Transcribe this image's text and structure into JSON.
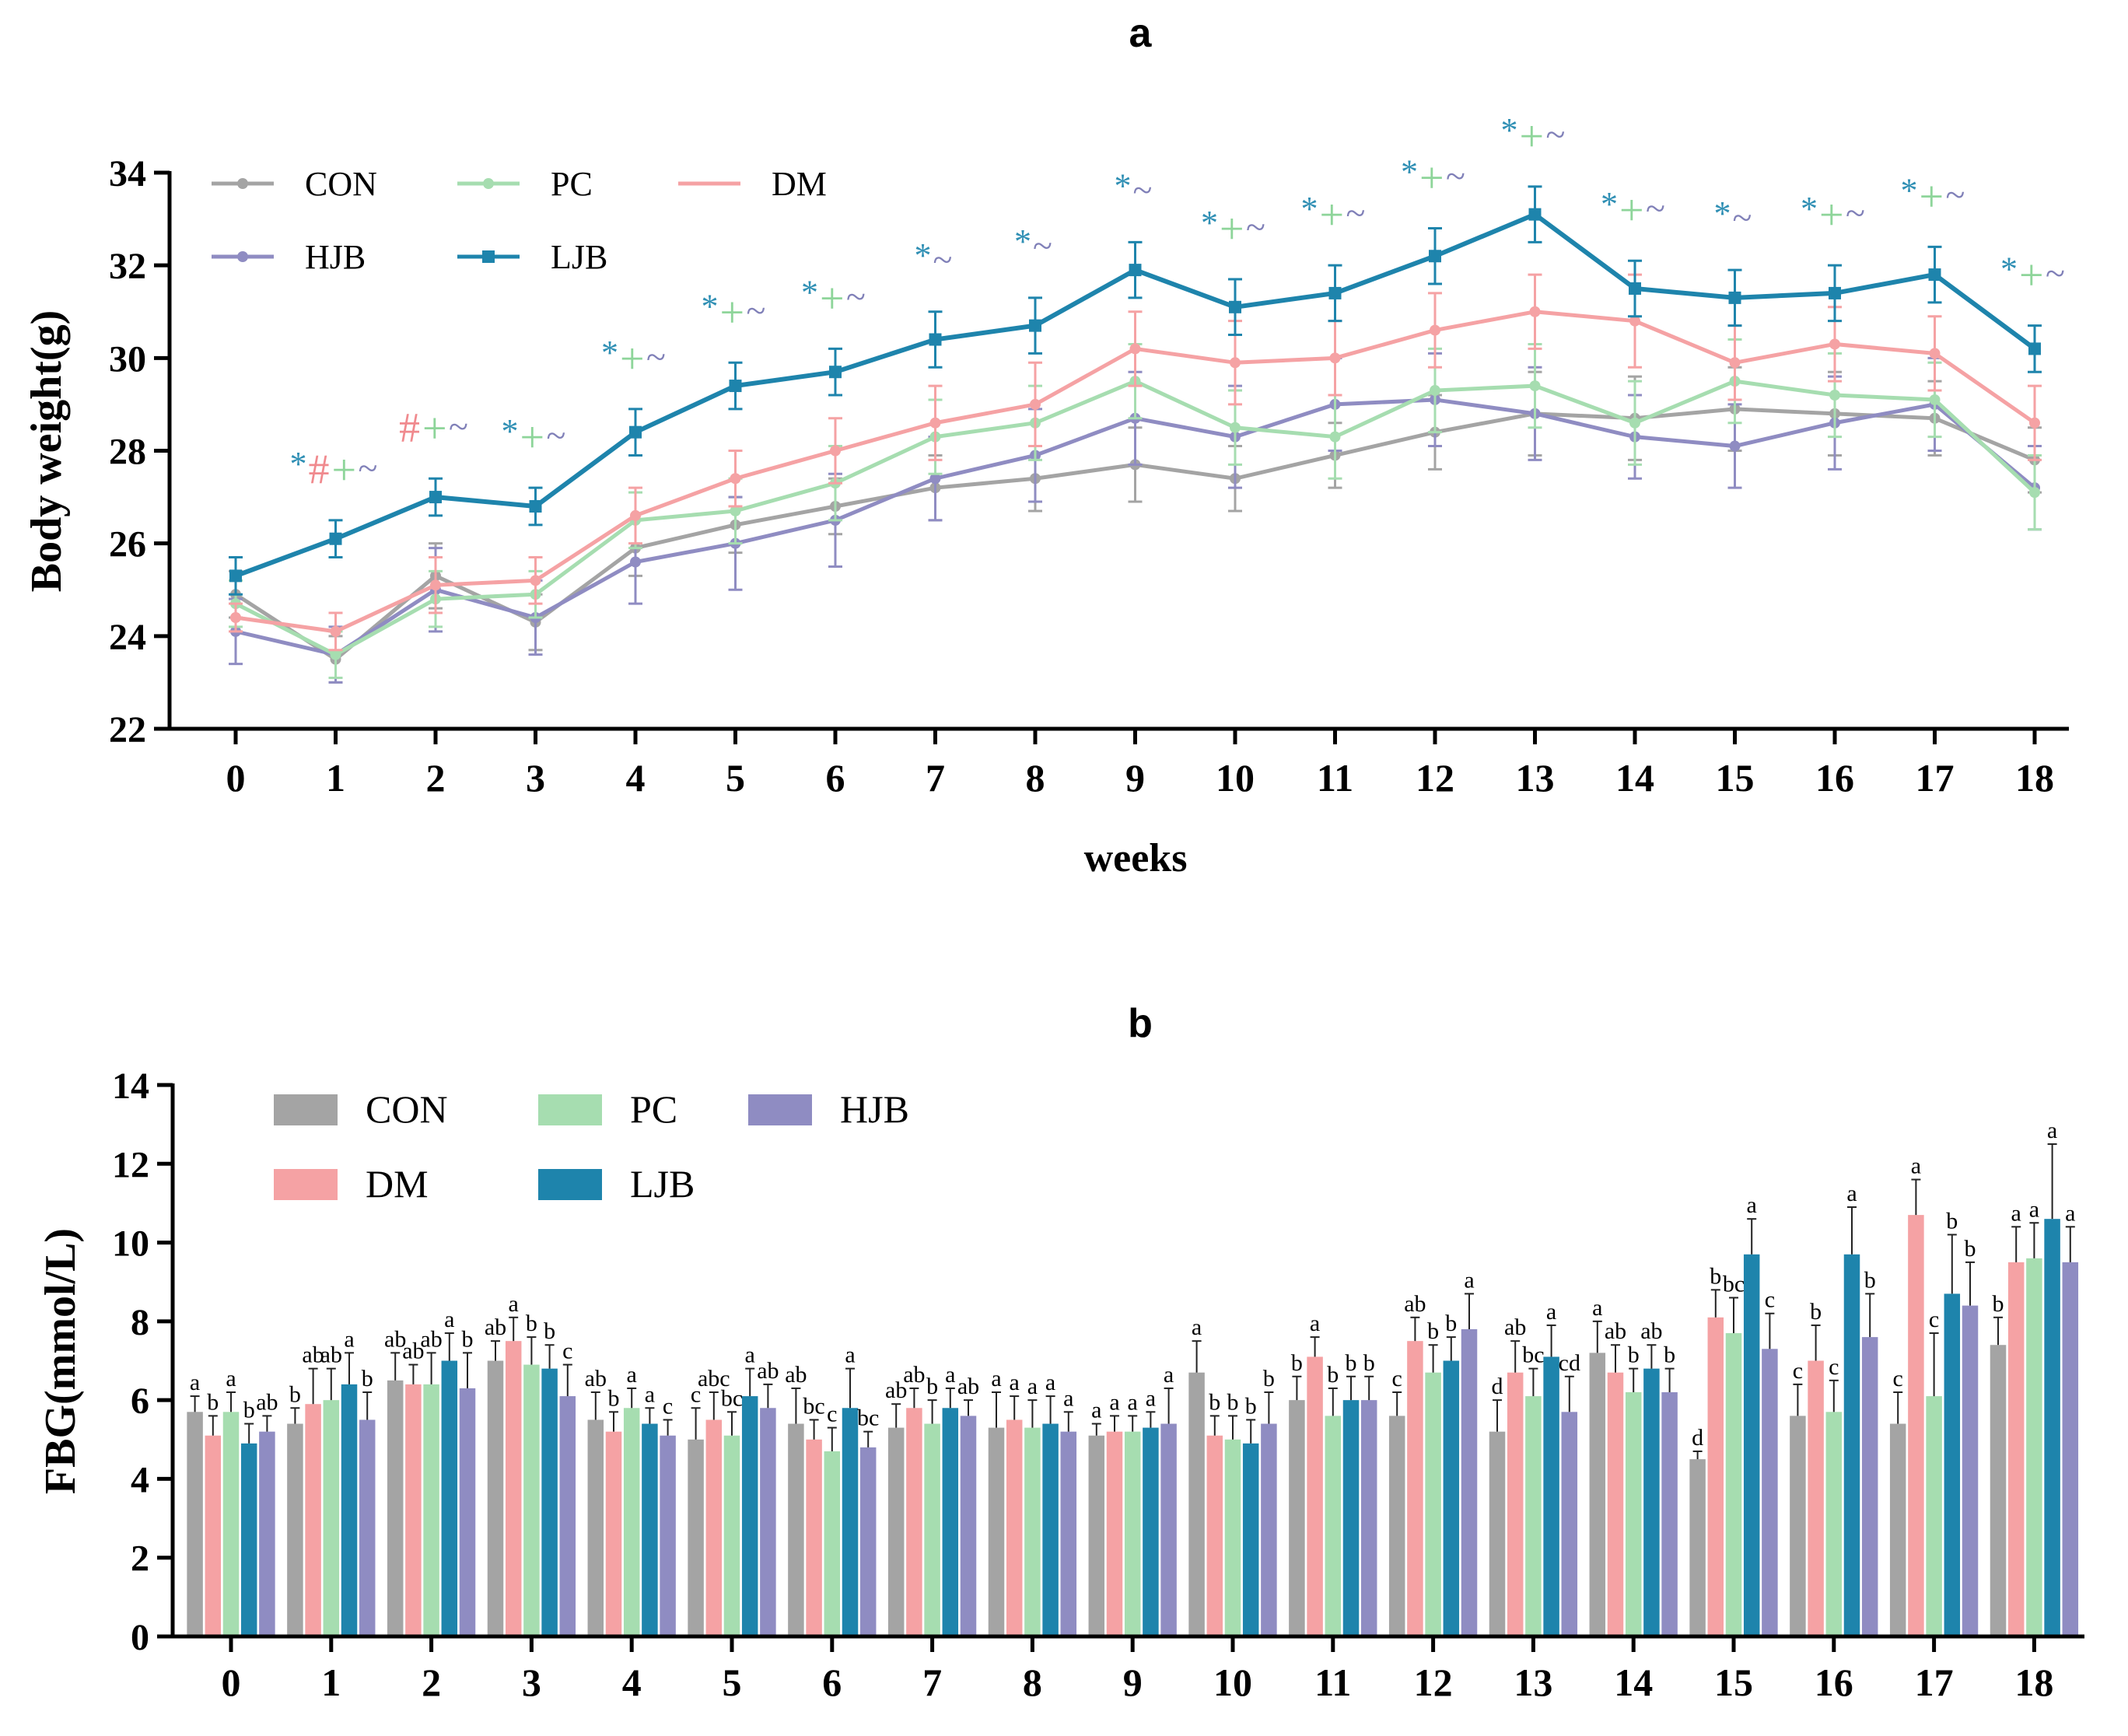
{
  "figure": {
    "panel_a_label": "a",
    "panel_b_label": "b"
  },
  "colors": {
    "CON": "#a4a4a4",
    "PC": "#a6ddb0",
    "DM": "#f5a2a4",
    "HJB": "#8f8cc2",
    "LJB": "#1e84ac",
    "star": "#2f8fb4",
    "plus": "#8ed59a",
    "hash": "#f08a8e",
    "tilde": "#8080b8"
  },
  "chart_data": [
    {
      "type": "line",
      "title": "a",
      "xlabel": "weeks",
      "ylabel": "Body weight(g)",
      "ylim": [
        22,
        34
      ],
      "yticks": [
        22,
        24,
        26,
        28,
        30,
        32,
        34
      ],
      "x": [
        0,
        1,
        2,
        3,
        4,
        5,
        6,
        7,
        8,
        9,
        10,
        11,
        12,
        13,
        14,
        15,
        16,
        17,
        18
      ],
      "legend_order": [
        "CON",
        "PC",
        "DM",
        "HJB",
        "LJB"
      ],
      "series": [
        {
          "name": "CON",
          "values": [
            24.9,
            23.5,
            25.3,
            24.3,
            25.9,
            26.4,
            26.8,
            27.2,
            27.4,
            27.7,
            27.4,
            27.9,
            28.4,
            28.8,
            28.7,
            28.9,
            28.8,
            28.7,
            27.8
          ],
          "err": [
            0.5,
            0.5,
            0.7,
            0.6,
            0.6,
            0.6,
            0.6,
            0.7,
            0.7,
            0.8,
            0.7,
            0.7,
            0.8,
            0.9,
            0.9,
            0.9,
            0.9,
            0.8,
            0.7
          ]
        },
        {
          "name": "PC",
          "values": [
            24.7,
            23.6,
            24.8,
            24.9,
            26.5,
            26.7,
            27.3,
            28.3,
            28.6,
            29.5,
            28.5,
            28.3,
            29.3,
            29.4,
            28.6,
            29.5,
            29.2,
            29.1,
            27.1
          ],
          "err": [
            0.5,
            0.5,
            0.6,
            0.5,
            0.6,
            0.7,
            0.8,
            0.8,
            0.8,
            0.8,
            0.8,
            0.9,
            0.9,
            0.9,
            0.9,
            0.9,
            0.9,
            0.8,
            0.8
          ]
        },
        {
          "name": "DM",
          "values": [
            24.4,
            24.1,
            25.1,
            25.2,
            26.6,
            27.4,
            28.0,
            28.6,
            29.0,
            30.2,
            29.9,
            30.0,
            30.6,
            31.0,
            30.8,
            29.9,
            30.3,
            30.1,
            28.6
          ],
          "err": [
            0.3,
            0.4,
            0.6,
            0.5,
            0.6,
            0.6,
            0.7,
            0.8,
            0.9,
            0.8,
            0.9,
            0.8,
            0.8,
            0.8,
            1.0,
            0.8,
            0.8,
            0.8,
            0.8
          ]
        },
        {
          "name": "HJB",
          "values": [
            24.1,
            23.6,
            25.0,
            24.4,
            25.6,
            26.0,
            26.5,
            27.4,
            27.9,
            28.7,
            28.3,
            29.0,
            29.1,
            28.8,
            28.3,
            28.1,
            28.6,
            29.0,
            27.2
          ],
          "err": [
            0.7,
            0.6,
            0.9,
            0.8,
            0.9,
            1.0,
            1.0,
            0.9,
            1.0,
            1.0,
            1.1,
            1.0,
            1.0,
            1.0,
            0.9,
            0.9,
            1.0,
            1.0,
            0.9
          ]
        },
        {
          "name": "LJB",
          "values": [
            25.3,
            26.1,
            27.0,
            26.8,
            28.4,
            29.4,
            29.7,
            30.4,
            30.7,
            31.9,
            31.1,
            31.4,
            32.2,
            33.1,
            31.5,
            31.3,
            31.4,
            31.8,
            30.2
          ],
          "err": [
            0.4,
            0.4,
            0.4,
            0.4,
            0.5,
            0.5,
            0.5,
            0.6,
            0.6,
            0.6,
            0.6,
            0.6,
            0.6,
            0.6,
            0.6,
            0.6,
            0.6,
            0.6,
            0.5
          ]
        }
      ],
      "annotations": [
        {
          "x": 1,
          "marks": [
            "*",
            "#",
            "+",
            "~"
          ]
        },
        {
          "x": 2,
          "marks": [
            "#",
            "+",
            "~"
          ]
        },
        {
          "x": 3,
          "marks": [
            "*",
            "+",
            "~"
          ]
        },
        {
          "x": 4,
          "marks": [
            "*",
            "+",
            "~"
          ]
        },
        {
          "x": 5,
          "marks": [
            "*",
            "+",
            "~"
          ]
        },
        {
          "x": 6,
          "marks": [
            "*",
            "+",
            "~"
          ]
        },
        {
          "x": 7,
          "marks": [
            "*",
            "~"
          ]
        },
        {
          "x": 8,
          "marks": [
            "*",
            "~"
          ]
        },
        {
          "x": 9,
          "marks": [
            "*",
            "~"
          ]
        },
        {
          "x": 10,
          "marks": [
            "*",
            "+",
            "~"
          ]
        },
        {
          "x": 11,
          "marks": [
            "*",
            "+",
            "~"
          ]
        },
        {
          "x": 12,
          "marks": [
            "*",
            "+",
            "~"
          ]
        },
        {
          "x": 13,
          "marks": [
            "*",
            "+",
            "~"
          ]
        },
        {
          "x": 14,
          "marks": [
            "*",
            "+",
            "~"
          ]
        },
        {
          "x": 15,
          "marks": [
            "*",
            "~"
          ]
        },
        {
          "x": 16,
          "marks": [
            "*",
            "+",
            "~"
          ]
        },
        {
          "x": 17,
          "marks": [
            "*",
            "+",
            "~"
          ]
        },
        {
          "x": 18,
          "marks": [
            "*",
            "+",
            "~"
          ]
        }
      ]
    },
    {
      "type": "bar",
      "title": "b",
      "xlabel": "",
      "ylabel": "FBG(mmol/L)",
      "ylim": [
        0,
        14
      ],
      "yticks": [
        0,
        2,
        4,
        6,
        8,
        10,
        12,
        14
      ],
      "categories": [
        "0",
        "1",
        "2",
        "3",
        "4",
        "5",
        "6",
        "7",
        "8",
        "9",
        "10",
        "11",
        "12",
        "13",
        "14",
        "15",
        "16",
        "17",
        "18"
      ],
      "group_order": [
        "CON",
        "DM",
        "PC",
        "LJB",
        "HJB"
      ],
      "legend_order": [
        "CON",
        "PC",
        "HJB",
        "DM",
        "LJB"
      ],
      "series": [
        {
          "name": "CON",
          "values": [
            5.7,
            5.4,
            6.5,
            7.0,
            5.5,
            5.0,
            5.4,
            5.3,
            5.3,
            5.1,
            6.7,
            6.0,
            5.6,
            5.2,
            7.2,
            4.5,
            5.6,
            5.4,
            7.4
          ],
          "err": [
            0.4,
            0.4,
            0.7,
            0.5,
            0.7,
            0.8,
            0.9,
            0.6,
            0.9,
            0.3,
            0.8,
            0.6,
            0.6,
            0.8,
            0.8,
            0.2,
            0.8,
            0.8,
            0.7
          ],
          "labels": [
            "a",
            "b",
            "ab",
            "ab",
            "ab",
            "c",
            "ab",
            "ab",
            "a",
            "a",
            "a",
            "b",
            "c",
            "d",
            "a",
            "d",
            "c",
            "c",
            "b"
          ]
        },
        {
          "name": "DM",
          "values": [
            5.1,
            5.9,
            6.4,
            7.5,
            5.2,
            5.5,
            5.0,
            5.8,
            5.5,
            5.2,
            5.1,
            7.1,
            7.5,
            6.7,
            6.7,
            8.1,
            7.0,
            10.7,
            9.5
          ],
          "err": [
            0.5,
            0.9,
            0.5,
            0.6,
            0.5,
            0.7,
            0.5,
            0.5,
            0.6,
            0.4,
            0.5,
            0.5,
            0.6,
            0.8,
            0.7,
            0.7,
            0.9,
            0.9,
            0.9
          ],
          "labels": [
            "b",
            "ab",
            "ab",
            "a",
            "b",
            "abc",
            "bc",
            "ab",
            "a",
            "a",
            "b",
            "a",
            "ab",
            "ab",
            "ab",
            "b",
            "b",
            "a",
            "a"
          ]
        },
        {
          "name": "PC",
          "values": [
            5.7,
            6.0,
            6.4,
            6.9,
            5.8,
            5.1,
            4.7,
            5.4,
            5.3,
            5.2,
            5.0,
            5.6,
            6.7,
            6.1,
            6.2,
            7.7,
            5.7,
            6.1,
            9.6
          ],
          "err": [
            0.5,
            0.8,
            0.8,
            0.7,
            0.5,
            0.6,
            0.6,
            0.6,
            0.7,
            0.4,
            0.6,
            0.7,
            0.7,
            0.7,
            0.6,
            0.9,
            0.8,
            1.6,
            0.9
          ],
          "labels": [
            "a",
            "ab",
            "ab",
            "b",
            "a",
            "bc",
            "c",
            "b",
            "a",
            "a",
            "b",
            "b",
            "b",
            "bc",
            "b",
            "bc",
            "c",
            "c",
            "a"
          ]
        },
        {
          "name": "LJB",
          "values": [
            4.9,
            6.4,
            7.0,
            6.8,
            5.4,
            6.1,
            5.8,
            5.8,
            5.4,
            5.3,
            4.9,
            6.0,
            7.0,
            7.1,
            6.8,
            9.7,
            9.7,
            8.7,
            10.6
          ],
          "err": [
            0.5,
            0.8,
            0.7,
            0.6,
            0.4,
            0.7,
            1.0,
            0.5,
            0.7,
            0.4,
            0.6,
            0.6,
            0.6,
            0.8,
            0.6,
            0.9,
            1.2,
            1.5,
            1.9
          ],
          "labels": [
            "b",
            "a",
            "a",
            "b",
            "a",
            "a",
            "a",
            "a",
            "a",
            "a",
            "b",
            "b",
            "b",
            "a",
            "ab",
            "a",
            "a",
            "b",
            "a"
          ]
        },
        {
          "name": "HJB",
          "values": [
            5.2,
            5.5,
            6.3,
            6.1,
            5.1,
            5.8,
            4.8,
            5.6,
            5.2,
            5.4,
            5.4,
            6.0,
            7.8,
            5.7,
            6.2,
            7.3,
            7.6,
            8.4,
            9.5
          ],
          "err": [
            0.4,
            0.7,
            0.9,
            0.8,
            0.4,
            0.6,
            0.4,
            0.4,
            0.5,
            0.9,
            0.8,
            0.6,
            0.9,
            0.9,
            0.6,
            0.9,
            1.1,
            1.1,
            0.9
          ],
          "labels": [
            "ab",
            "b",
            "b",
            "c",
            "c",
            "ab",
            "bc",
            "ab",
            "a",
            "a",
            "b",
            "b",
            "a",
            "cd",
            "b",
            "c",
            "b",
            "b",
            "a"
          ]
        }
      ]
    }
  ]
}
